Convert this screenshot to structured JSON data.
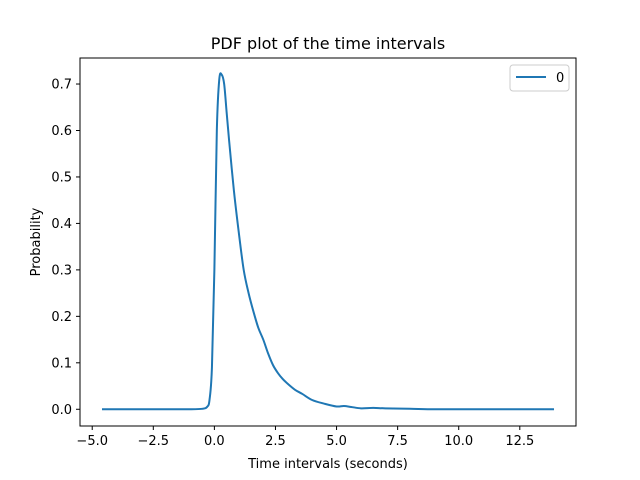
{
  "chart_data": {
    "type": "line",
    "title": "PDF plot of the time intervals",
    "xlabel": "Time intervals (seconds)",
    "ylabel": "Probability",
    "xlim": [
      -5.5,
      14.8
    ],
    "ylim": [
      -0.036,
      0.756
    ],
    "xticks": [
      -5.0,
      -2.5,
      0.0,
      2.5,
      5.0,
      7.5,
      10.0,
      12.5
    ],
    "xtick_labels": [
      "−5.0",
      "−2.5",
      "0.0",
      "2.5",
      "5.0",
      "7.5",
      "10.0",
      "12.5"
    ],
    "yticks": [
      0.0,
      0.1,
      0.2,
      0.3,
      0.4,
      0.5,
      0.6,
      0.7
    ],
    "ytick_labels": [
      "0.0",
      "0.1",
      "0.2",
      "0.3",
      "0.4",
      "0.5",
      "0.6",
      "0.7"
    ],
    "grid": false,
    "legend_position": "top-right",
    "series": [
      {
        "name": "0",
        "color": "#1f77b4",
        "x": [
          -4.6,
          -2.0,
          -1.0,
          -0.5,
          -0.3,
          -0.2,
          -0.1,
          0.0,
          0.1,
          0.2,
          0.3,
          0.4,
          0.5,
          0.6,
          0.8,
          1.0,
          1.2,
          1.4,
          1.6,
          1.8,
          2.0,
          2.2,
          2.4,
          2.6,
          2.8,
          3.0,
          3.3,
          3.6,
          4.0,
          4.5,
          5.0,
          5.3,
          5.6,
          6.0,
          6.5,
          7.0,
          8.0,
          9.0,
          10.0,
          11.0,
          12.0,
          13.0,
          13.9
        ],
        "y": [
          0.0,
          0.0,
          0.0,
          0.001,
          0.005,
          0.02,
          0.09,
          0.3,
          0.6,
          0.71,
          0.72,
          0.7,
          0.64,
          0.58,
          0.47,
          0.38,
          0.3,
          0.25,
          0.21,
          0.175,
          0.15,
          0.12,
          0.095,
          0.078,
          0.065,
          0.055,
          0.042,
          0.033,
          0.02,
          0.012,
          0.006,
          0.007,
          0.005,
          0.002,
          0.003,
          0.002,
          0.001,
          0.0,
          0.0,
          0.0,
          0.0,
          0.0,
          0.0
        ]
      }
    ]
  }
}
